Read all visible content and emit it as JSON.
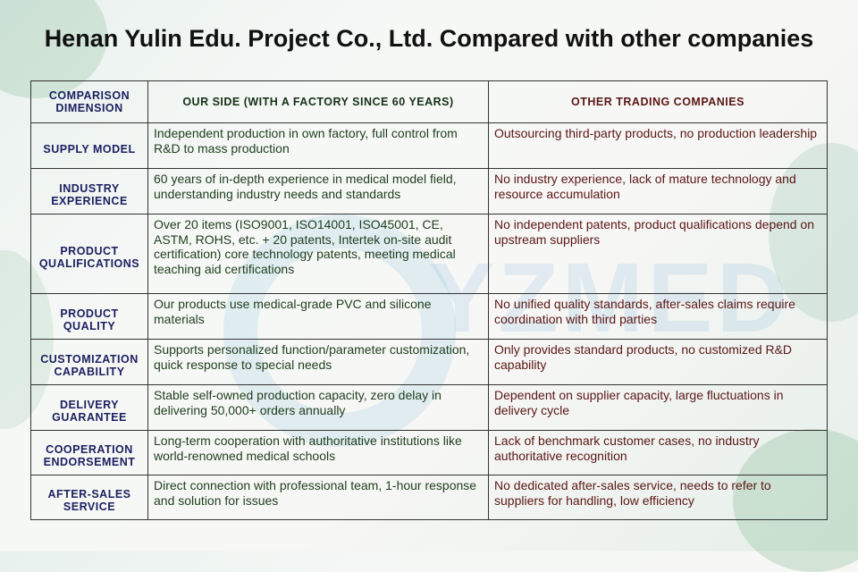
{
  "title": "Henan Yulin Edu. Project Co., Ltd. Compared with other companies",
  "headers": {
    "dimension": "COMPARISON DIMENSION",
    "ours": "OUR SIDE (WITH A FACTORY SINCE 60 YEARS)",
    "other": "OTHER TRADING COMPANIES"
  },
  "rows": [
    {
      "dimension": "SUPPLY MODEL",
      "ours": "Independent production in own factory, full control from R&D to mass production",
      "other": "Outsourcing third-party products, no production leadership"
    },
    {
      "dimension": "INDUSTRY EXPERIENCE",
      "ours": "60 years of in-depth experience in medical model field, understanding industry needs and standards",
      "other": "No industry experience, lack of mature technology and resource accumulation"
    },
    {
      "dimension": "PRODUCT QUALIFICATIONS",
      "ours": "Over 20 items (ISO9001, ISO14001, ISO45001, CE, ASTM, ROHS, etc. + 20 patents, Intertek on-site audit certification) core technology patents, meeting medical teaching aid certifications",
      "other": "No independent patents, product qualifications depend on upstream suppliers"
    },
    {
      "dimension": "PRODUCT QUALITY",
      "ours": "Our products use medical-grade PVC and silicone materials",
      "other": "No unified quality standards, after-sales claims require coordination with third parties"
    },
    {
      "dimension": "CUSTOMIZATION CAPABILITY",
      "ours": "Supports personalized function/parameter customization, quick response to special needs",
      "other": "Only provides standard products, no customized R&D capability"
    },
    {
      "dimension": "DELIVERY GUARANTEE",
      "ours": "Stable self-owned production capacity, zero delay in delivering 50,000+ orders annually",
      "other": "Dependent on supplier capacity, large fluctuations in delivery cycle"
    },
    {
      "dimension": "COOPERATION ENDORSEMENT",
      "ours": "Long-term cooperation with authoritative institutions like world-renowned medical schools",
      "other": "Lack of benchmark customer cases, no industry authoritative recognition"
    },
    {
      "dimension": "AFTER-SALES SERVICE",
      "ours": "Direct connection with professional team, 1-hour response and solution for issues",
      "other": "No dedicated after-sales service, needs to refer to suppliers for handling, low efficiency"
    }
  ],
  "watermark": "YZMED",
  "colors": {
    "dimension": "#1c2060",
    "ours": "#1f3d1d",
    "other": "#5a1616"
  }
}
